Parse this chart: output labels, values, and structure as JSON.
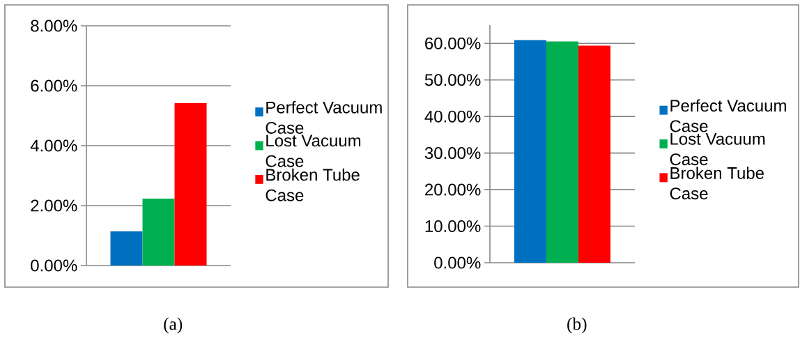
{
  "chart_data": [
    {
      "type": "bar",
      "categories": [
        null
      ],
      "series": [
        {
          "name": "Perfect Vacuum Case",
          "color": "#0070c0",
          "values": [
            1.14
          ]
        },
        {
          "name": "Lost Vacuum Case",
          "color": "#00b050",
          "values": [
            2.23
          ]
        },
        {
          "name": "Broken Tube Case",
          "color": "#ff0000",
          "values": [
            5.42
          ]
        }
      ],
      "ylim": [
        0,
        8
      ],
      "yticks": [
        {
          "value": 0,
          "label": "0.00%"
        },
        {
          "value": 2,
          "label": "2.00%"
        },
        {
          "value": 4,
          "label": "4.00%"
        },
        {
          "value": 6,
          "label": "6.00%"
        },
        {
          "value": 8,
          "label": "8.00%"
        }
      ],
      "grid": "y",
      "legend": "right",
      "annotations": [
        "(a)"
      ]
    },
    {
      "type": "bar",
      "categories": [
        null
      ],
      "series": [
        {
          "name": "Perfect Vacuum Case",
          "color": "#0070c0",
          "values": [
            60.9
          ]
        },
        {
          "name": "Lost Vacuum Case",
          "color": "#00b050",
          "values": [
            60.5
          ]
        },
        {
          "name": "Broken Tube Case",
          "color": "#ff0000",
          "values": [
            59.4
          ]
        }
      ],
      "ylim": [
        0,
        65
      ],
      "yticks": [
        {
          "value": 0,
          "label": "0.00%"
        },
        {
          "value": 10,
          "label": "10.00%"
        },
        {
          "value": 20,
          "label": "20.00%"
        },
        {
          "value": 30,
          "label": "30.00%"
        },
        {
          "value": 40,
          "label": "40.00%"
        },
        {
          "value": 50,
          "label": "50.00%"
        },
        {
          "value": 60,
          "label": "60.00%"
        }
      ],
      "grid": "y",
      "legend": "right",
      "annotations": [
        "(b)"
      ]
    }
  ]
}
